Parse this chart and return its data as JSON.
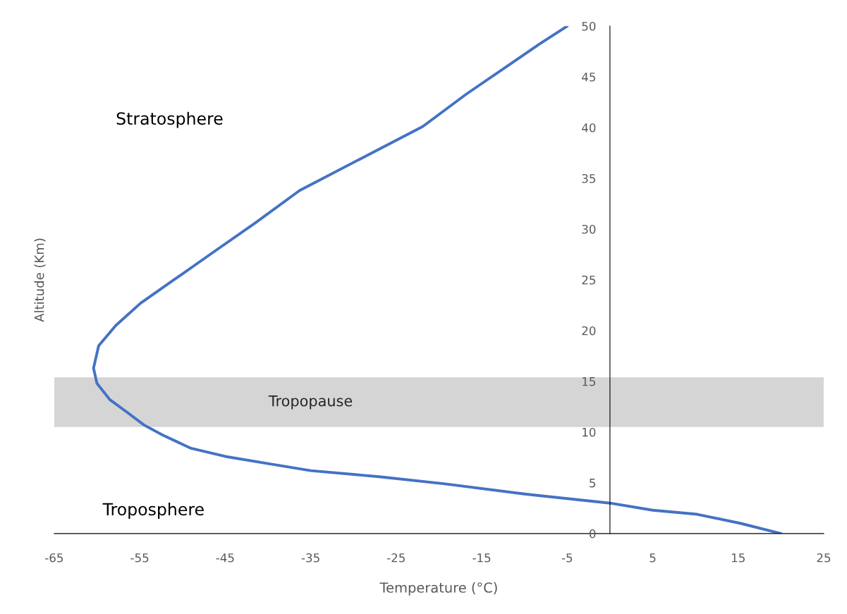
{
  "chart_data": {
    "type": "line",
    "xlabel": "Temperature (°C)",
    "ylabel": "Altitude (Km)",
    "xlim": [
      -65,
      25
    ],
    "xticks": [
      -65,
      -55,
      -45,
      -35,
      -25,
      -15,
      -5,
      5,
      15,
      25
    ],
    "ylim": [
      0,
      50
    ],
    "yticks": [
      0,
      5,
      10,
      15,
      20,
      25,
      30,
      35,
      40,
      45,
      50
    ],
    "grid": false,
    "legend": false,
    "line_style": "solid",
    "marker": "none",
    "series": [
      {
        "color": "#4472c4",
        "x": [
          20,
          15.3,
          10.2,
          5,
          0,
          -10,
          -19.3,
          -27,
          -35,
          -40,
          -45,
          -49,
          -52.3,
          -54.5,
          -56.4,
          -58.5,
          -60,
          -60.4,
          -59.8,
          -57.8,
          -54.9,
          -51,
          -46.6,
          -41.5,
          -36.3,
          -29,
          -21.9,
          -16.8,
          -11.6,
          -8.3,
          -5
        ],
        "values": [
          0,
          1,
          1.9,
          2.3,
          3,
          3.9,
          4.9,
          5.6,
          6.2,
          6.9,
          7.6,
          8.4,
          9.7,
          10.7,
          11.9,
          13.2,
          14.8,
          16.3,
          18.5,
          20.5,
          22.7,
          25,
          27.6,
          30.6,
          33.8,
          37,
          40.1,
          43.3,
          46.3,
          48.2,
          50
        ]
      }
    ],
    "bands": [
      {
        "axis": "y",
        "from": 10.5,
        "to": 15.4,
        "label": "Tropopause",
        "color": "#d5d5d5"
      }
    ],
    "annotations": [
      "Stratosphere",
      "Troposphere"
    ]
  }
}
